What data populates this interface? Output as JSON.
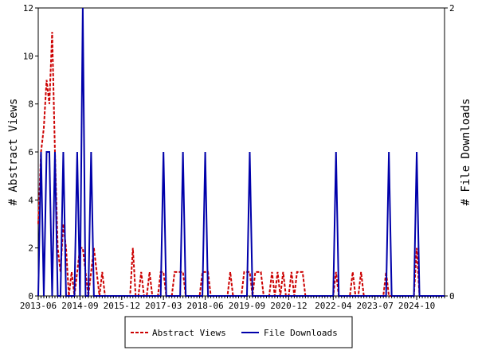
{
  "chart_data": {
    "type": "line",
    "title": "",
    "y_left": {
      "label": "# Abstract Views",
      "min": 0,
      "max": 12,
      "ticks": [
        0,
        2,
        4,
        6,
        8,
        10,
        12
      ]
    },
    "y_right": {
      "label": "# File Downloads",
      "min": 0,
      "max": 2,
      "ticks": [
        0,
        2
      ]
    },
    "x_axis": {
      "type": "month",
      "start": "2013-06",
      "end": "2025-08",
      "tick_labels": [
        "2013-06",
        "2014-09",
        "2015-12",
        "2017-03",
        "2018-06",
        "2019-09",
        "2020-12",
        "2022-04",
        "2023-07",
        "2024-10"
      ]
    },
    "grid": false,
    "legend": {
      "position": "bottom",
      "items": [
        {
          "name": "Abstract Views",
          "color": "#cc0000",
          "style": "dashed",
          "axis": "left"
        },
        {
          "name": "File Downloads",
          "color": "#0000aa",
          "style": "solid",
          "axis": "right"
        }
      ]
    },
    "series": [
      {
        "name": "Abstract Views",
        "axis": "left",
        "points": [
          [
            "2013-06",
            3
          ],
          [
            "2013-07",
            6
          ],
          [
            "2013-08",
            7
          ],
          [
            "2013-09",
            9
          ],
          [
            "2013-10",
            8
          ],
          [
            "2013-11",
            11
          ],
          [
            "2013-12",
            6
          ],
          [
            "2014-01",
            2
          ],
          [
            "2014-02",
            1
          ],
          [
            "2014-03",
            3
          ],
          [
            "2014-04",
            2
          ],
          [
            "2014-05",
            0
          ],
          [
            "2014-06",
            1
          ],
          [
            "2014-07",
            0
          ],
          [
            "2014-08",
            1
          ],
          [
            "2014-09",
            2
          ],
          [
            "2014-10",
            2
          ],
          [
            "2014-11",
            1
          ],
          [
            "2014-12",
            0
          ],
          [
            "2015-01",
            1
          ],
          [
            "2015-02",
            2
          ],
          [
            "2015-03",
            1
          ],
          [
            "2015-04",
            0
          ],
          [
            "2015-05",
            1
          ],
          [
            "2015-06",
            0
          ],
          [
            "2015-07",
            0
          ],
          [
            "2015-08",
            0
          ],
          [
            "2015-09",
            0
          ],
          [
            "2015-10",
            0
          ],
          [
            "2015-11",
            0
          ],
          [
            "2015-12",
            0
          ],
          [
            "2016-01",
            0
          ],
          [
            "2016-02",
            0
          ],
          [
            "2016-03",
            0
          ],
          [
            "2016-04",
            2
          ],
          [
            "2016-05",
            0
          ],
          [
            "2016-06",
            0
          ],
          [
            "2016-07",
            1
          ],
          [
            "2016-08",
            0
          ],
          [
            "2016-09",
            0
          ],
          [
            "2016-10",
            1
          ],
          [
            "2016-11",
            0
          ],
          [
            "2016-12",
            0
          ],
          [
            "2017-01",
            0
          ],
          [
            "2017-02",
            1
          ],
          [
            "2017-03",
            1
          ],
          [
            "2017-04",
            0
          ],
          [
            "2017-05",
            0
          ],
          [
            "2017-06",
            0
          ],
          [
            "2017-07",
            1
          ],
          [
            "2017-08",
            1
          ],
          [
            "2017-09",
            1
          ],
          [
            "2017-10",
            1
          ],
          [
            "2017-11",
            0
          ],
          [
            "2017-12",
            0
          ],
          [
            "2018-01",
            0
          ],
          [
            "2018-02",
            0
          ],
          [
            "2018-03",
            0
          ],
          [
            "2018-04",
            0
          ],
          [
            "2018-05",
            1
          ],
          [
            "2018-06",
            1
          ],
          [
            "2018-07",
            1
          ],
          [
            "2018-08",
            0
          ],
          [
            "2018-09",
            0
          ],
          [
            "2018-10",
            0
          ],
          [
            "2018-11",
            0
          ],
          [
            "2018-12",
            0
          ],
          [
            "2019-01",
            0
          ],
          [
            "2019-02",
            0
          ],
          [
            "2019-03",
            1
          ],
          [
            "2019-04",
            0
          ],
          [
            "2019-05",
            0
          ],
          [
            "2019-06",
            0
          ],
          [
            "2019-07",
            0
          ],
          [
            "2019-08",
            1
          ],
          [
            "2019-09",
            1
          ],
          [
            "2019-10",
            1
          ],
          [
            "2019-11",
            0
          ],
          [
            "2019-12",
            1
          ],
          [
            "2020-01",
            1
          ],
          [
            "2020-02",
            1
          ],
          [
            "2020-03",
            0
          ],
          [
            "2020-04",
            0
          ],
          [
            "2020-05",
            0
          ],
          [
            "2020-06",
            1
          ],
          [
            "2020-07",
            0
          ],
          [
            "2020-08",
            1
          ],
          [
            "2020-09",
            0
          ],
          [
            "2020-10",
            1
          ],
          [
            "2020-11",
            0
          ],
          [
            "2020-12",
            0
          ],
          [
            "2021-01",
            1
          ],
          [
            "2021-02",
            0
          ],
          [
            "2021-03",
            1
          ],
          [
            "2021-04",
            1
          ],
          [
            "2021-05",
            1
          ],
          [
            "2021-06",
            0
          ],
          [
            "2021-07",
            0
          ],
          [
            "2021-08",
            0
          ],
          [
            "2021-09",
            0
          ],
          [
            "2021-10",
            0
          ],
          [
            "2021-11",
            0
          ],
          [
            "2021-12",
            0
          ],
          [
            "2022-01",
            0
          ],
          [
            "2022-02",
            0
          ],
          [
            "2022-03",
            0
          ],
          [
            "2022-04",
            0
          ],
          [
            "2022-05",
            1
          ],
          [
            "2022-06",
            0
          ],
          [
            "2022-07",
            0
          ],
          [
            "2022-08",
            0
          ],
          [
            "2022-09",
            0
          ],
          [
            "2022-10",
            0
          ],
          [
            "2022-11",
            1
          ],
          [
            "2022-12",
            0
          ],
          [
            "2023-01",
            0
          ],
          [
            "2023-02",
            1
          ],
          [
            "2023-03",
            0
          ],
          [
            "2023-04",
            0
          ],
          [
            "2023-05",
            0
          ],
          [
            "2023-06",
            0
          ],
          [
            "2023-07",
            0
          ],
          [
            "2023-08",
            0
          ],
          [
            "2023-09",
            0
          ],
          [
            "2023-10",
            0
          ],
          [
            "2023-11",
            1
          ],
          [
            "2023-12",
            0
          ],
          [
            "2024-01",
            0
          ],
          [
            "2024-02",
            0
          ],
          [
            "2024-03",
            0
          ],
          [
            "2024-04",
            0
          ],
          [
            "2024-05",
            0
          ],
          [
            "2024-06",
            0
          ],
          [
            "2024-07",
            0
          ],
          [
            "2024-08",
            0
          ],
          [
            "2024-09",
            0
          ],
          [
            "2024-10",
            2
          ],
          [
            "2024-11",
            0
          ],
          [
            "2024-12",
            0
          ],
          [
            "2025-01",
            0
          ],
          [
            "2025-02",
            0
          ],
          [
            "2025-03",
            0
          ],
          [
            "2025-04",
            0
          ],
          [
            "2025-05",
            0
          ],
          [
            "2025-06",
            0
          ],
          [
            "2025-07",
            0
          ],
          [
            "2025-08",
            0
          ]
        ]
      },
      {
        "name": "File Downloads",
        "axis": "right",
        "points": [
          [
            "2013-06",
            0
          ],
          [
            "2013-07",
            1
          ],
          [
            "2013-08",
            0
          ],
          [
            "2013-09",
            1
          ],
          [
            "2013-10",
            1
          ],
          [
            "2013-11",
            0
          ],
          [
            "2013-12",
            1
          ],
          [
            "2014-01",
            0
          ],
          [
            "2014-02",
            0
          ],
          [
            "2014-03",
            1
          ],
          [
            "2014-04",
            0
          ],
          [
            "2014-05",
            0
          ],
          [
            "2014-06",
            0
          ],
          [
            "2014-07",
            0
          ],
          [
            "2014-08",
            1
          ],
          [
            "2014-09",
            0
          ],
          [
            "2014-10",
            2
          ],
          [
            "2014-11",
            0
          ],
          [
            "2014-12",
            0
          ],
          [
            "2015-01",
            1
          ],
          [
            "2015-02",
            0
          ],
          [
            "2015-03",
            0
          ],
          [
            "2015-04",
            0
          ],
          [
            "2015-05",
            0
          ],
          [
            "2015-06",
            0
          ],
          [
            "2015-07",
            0
          ],
          [
            "2015-08",
            0
          ],
          [
            "2015-09",
            0
          ],
          [
            "2015-10",
            0
          ],
          [
            "2015-11",
            0
          ],
          [
            "2015-12",
            0
          ],
          [
            "2016-01",
            0
          ],
          [
            "2016-02",
            0
          ],
          [
            "2016-03",
            0
          ],
          [
            "2016-04",
            0
          ],
          [
            "2016-05",
            0
          ],
          [
            "2016-06",
            0
          ],
          [
            "2016-07",
            0
          ],
          [
            "2016-08",
            0
          ],
          [
            "2016-09",
            0
          ],
          [
            "2016-10",
            0
          ],
          [
            "2016-11",
            0
          ],
          [
            "2016-12",
            0
          ],
          [
            "2017-01",
            0
          ],
          [
            "2017-02",
            0
          ],
          [
            "2017-03",
            1
          ],
          [
            "2017-04",
            0
          ],
          [
            "2017-05",
            0
          ],
          [
            "2017-06",
            0
          ],
          [
            "2017-07",
            0
          ],
          [
            "2017-08",
            0
          ],
          [
            "2017-09",
            0
          ],
          [
            "2017-10",
            1
          ],
          [
            "2017-11",
            0
          ],
          [
            "2017-12",
            0
          ],
          [
            "2018-01",
            0
          ],
          [
            "2018-02",
            0
          ],
          [
            "2018-03",
            0
          ],
          [
            "2018-04",
            0
          ],
          [
            "2018-05",
            0
          ],
          [
            "2018-06",
            1
          ],
          [
            "2018-07",
            0
          ],
          [
            "2018-08",
            0
          ],
          [
            "2018-09",
            0
          ],
          [
            "2018-10",
            0
          ],
          [
            "2018-11",
            0
          ],
          [
            "2018-12",
            0
          ],
          [
            "2019-01",
            0
          ],
          [
            "2019-02",
            0
          ],
          [
            "2019-03",
            0
          ],
          [
            "2019-04",
            0
          ],
          [
            "2019-05",
            0
          ],
          [
            "2019-06",
            0
          ],
          [
            "2019-07",
            0
          ],
          [
            "2019-08",
            0
          ],
          [
            "2019-09",
            0
          ],
          [
            "2019-10",
            1
          ],
          [
            "2019-11",
            0
          ],
          [
            "2019-12",
            0
          ],
          [
            "2020-01",
            0
          ],
          [
            "2020-02",
            0
          ],
          [
            "2020-03",
            0
          ],
          [
            "2020-04",
            0
          ],
          [
            "2020-05",
            0
          ],
          [
            "2020-06",
            0
          ],
          [
            "2020-07",
            0
          ],
          [
            "2020-08",
            0
          ],
          [
            "2020-09",
            0
          ],
          [
            "2020-10",
            0
          ],
          [
            "2020-11",
            0
          ],
          [
            "2020-12",
            0
          ],
          [
            "2021-01",
            0
          ],
          [
            "2021-02",
            0
          ],
          [
            "2021-03",
            0
          ],
          [
            "2021-04",
            0
          ],
          [
            "2021-05",
            0
          ],
          [
            "2021-06",
            0
          ],
          [
            "2021-07",
            0
          ],
          [
            "2021-08",
            0
          ],
          [
            "2021-09",
            0
          ],
          [
            "2021-10",
            0
          ],
          [
            "2021-11",
            0
          ],
          [
            "2021-12",
            0
          ],
          [
            "2022-01",
            0
          ],
          [
            "2022-02",
            0
          ],
          [
            "2022-03",
            0
          ],
          [
            "2022-04",
            0
          ],
          [
            "2022-05",
            1
          ],
          [
            "2022-06",
            0
          ],
          [
            "2022-07",
            0
          ],
          [
            "2022-08",
            0
          ],
          [
            "2022-09",
            0
          ],
          [
            "2022-10",
            0
          ],
          [
            "2022-11",
            0
          ],
          [
            "2022-12",
            0
          ],
          [
            "2023-01",
            0
          ],
          [
            "2023-02",
            0
          ],
          [
            "2023-03",
            0
          ],
          [
            "2023-04",
            0
          ],
          [
            "2023-05",
            0
          ],
          [
            "2023-06",
            0
          ],
          [
            "2023-07",
            0
          ],
          [
            "2023-08",
            0
          ],
          [
            "2023-09",
            0
          ],
          [
            "2023-10",
            0
          ],
          [
            "2023-11",
            0
          ],
          [
            "2023-12",
            1
          ],
          [
            "2024-01",
            0
          ],
          [
            "2024-02",
            0
          ],
          [
            "2024-03",
            0
          ],
          [
            "2024-04",
            0
          ],
          [
            "2024-05",
            0
          ],
          [
            "2024-06",
            0
          ],
          [
            "2024-07",
            0
          ],
          [
            "2024-08",
            0
          ],
          [
            "2024-09",
            0
          ],
          [
            "2024-10",
            1
          ],
          [
            "2024-11",
            0
          ],
          [
            "2024-12",
            0
          ],
          [
            "2025-01",
            0
          ],
          [
            "2025-02",
            0
          ],
          [
            "2025-03",
            0
          ],
          [
            "2025-04",
            0
          ],
          [
            "2025-05",
            0
          ],
          [
            "2025-06",
            0
          ],
          [
            "2025-07",
            0
          ],
          [
            "2025-08",
            0
          ]
        ]
      }
    ]
  }
}
